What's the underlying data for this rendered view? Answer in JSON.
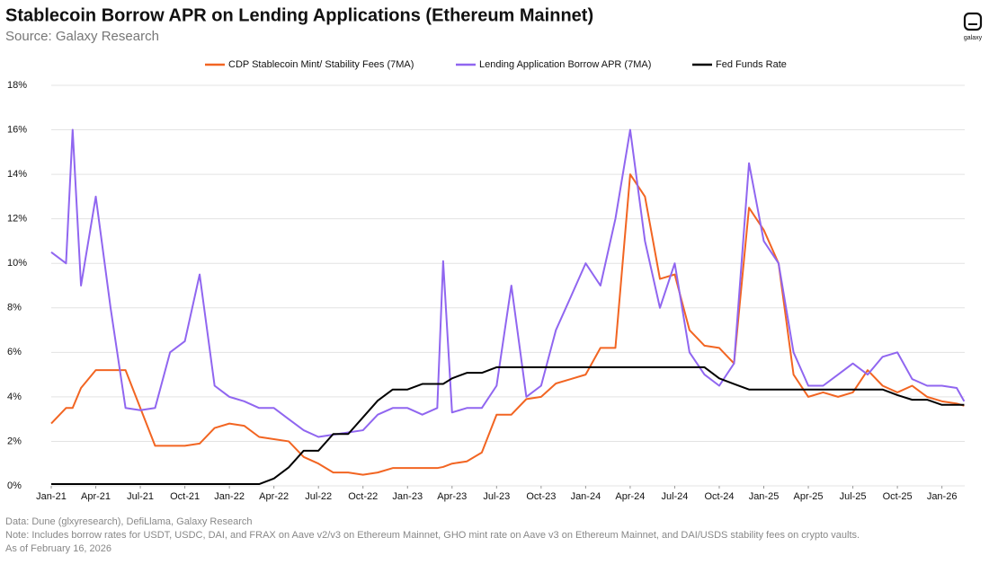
{
  "chart_data": {
    "type": "line",
    "title": "Stablecoin Borrow APR on Lending Applications (Ethereum Mainnet)",
    "subtitle": "Source: Galaxy Research",
    "logo_text": "galaxy",
    "notes": [
      "Data: Dune (glxyresearch), DefiLlama, Galaxy Research",
      "Note: Includes borrow rates for USDT, USDC, DAI, and FRAX on Aave v2/v3 on Ethereum Mainnet, GHO mint rate on Aave v3 on Ethereum Mainnet, and DAI/USDS stability fees on crypto vaults.",
      "As of February 16, 2026"
    ],
    "grid": true,
    "legend": "top",
    "x": [
      2021,
      2021.083,
      2021.12,
      2021.167,
      2021.25,
      2021.333,
      2021.417,
      2021.5,
      2021.583,
      2021.667,
      2021.75,
      2021.833,
      2021.917,
      2022,
      2022.083,
      2022.167,
      2022.25,
      2022.333,
      2022.417,
      2022.5,
      2022.583,
      2022.667,
      2022.75,
      2022.833,
      2022.917,
      2023,
      2023.083,
      2023.167,
      2023.2,
      2023.25,
      2023.333,
      2023.417,
      2023.5,
      2023.583,
      2023.667,
      2023.75,
      2023.833,
      2023.917,
      2024,
      2024.083,
      2024.167,
      2024.25,
      2024.333,
      2024.417,
      2024.5,
      2024.583,
      2024.667,
      2024.75,
      2024.833,
      2024.917,
      2025,
      2025.083,
      2025.167,
      2025.25,
      2025.333,
      2025.417,
      2025.5,
      2025.583,
      2025.667,
      2025.75,
      2025.833,
      2025.917,
      2026,
      2026.083,
      2026.125
    ],
    "xlim": [
      2021,
      2026.128
    ],
    "xticks": [
      {
        "value": 2021,
        "label": "Jan-21"
      },
      {
        "value": 2021.25,
        "label": "Apr-21"
      },
      {
        "value": 2021.5,
        "label": "Jul-21"
      },
      {
        "value": 2021.75,
        "label": "Oct-21"
      },
      {
        "value": 2022,
        "label": "Jan-22"
      },
      {
        "value": 2022.25,
        "label": "Apr-22"
      },
      {
        "value": 2022.5,
        "label": "Jul-22"
      },
      {
        "value": 2022.75,
        "label": "Oct-22"
      },
      {
        "value": 2023,
        "label": "Jan-23"
      },
      {
        "value": 2023.25,
        "label": "Apr-23"
      },
      {
        "value": 2023.5,
        "label": "Jul-23"
      },
      {
        "value": 2023.75,
        "label": "Oct-23"
      },
      {
        "value": 2024,
        "label": "Jan-24"
      },
      {
        "value": 2024.25,
        "label": "Apr-24"
      },
      {
        "value": 2024.5,
        "label": "Jul-24"
      },
      {
        "value": 2024.75,
        "label": "Oct-24"
      },
      {
        "value": 2025,
        "label": "Jan-25"
      },
      {
        "value": 2025.25,
        "label": "Apr-25"
      },
      {
        "value": 2025.5,
        "label": "Jul-25"
      },
      {
        "value": 2025.75,
        "label": "Oct-25"
      },
      {
        "value": 2026,
        "label": "Jan-26"
      }
    ],
    "ylim": [
      0,
      18
    ],
    "yticks": [
      {
        "value": 0,
        "label": "0%"
      },
      {
        "value": 2,
        "label": "2%"
      },
      {
        "value": 4,
        "label": "4%"
      },
      {
        "value": 6,
        "label": "6%"
      },
      {
        "value": 8,
        "label": "8%"
      },
      {
        "value": 10,
        "label": "10%"
      },
      {
        "value": 12,
        "label": "12%"
      },
      {
        "value": 14,
        "label": "14%"
      },
      {
        "value": 16,
        "label": "16%"
      },
      {
        "value": 18,
        "label": "18%"
      }
    ],
    "series": [
      {
        "name": "CDP Stablecoin Mint/ Stability Fees (7MA)",
        "color": "#f26522",
        "values": [
          2.8,
          3.5,
          3.5,
          4.4,
          5.2,
          5.2,
          5.2,
          3.5,
          1.8,
          1.8,
          1.8,
          1.9,
          2.6,
          2.8,
          2.7,
          2.2,
          2.1,
          2.0,
          1.3,
          1.0,
          0.6,
          0.6,
          0.5,
          0.6,
          0.8,
          0.8,
          0.8,
          0.8,
          0.85,
          1.0,
          1.1,
          1.5,
          3.2,
          3.2,
          3.9,
          4.0,
          4.6,
          4.8,
          5.0,
          6.2,
          6.2,
          14,
          13,
          9.3,
          9.5,
          7,
          6.3,
          6.2,
          5.5,
          12.5,
          11.5,
          10,
          5,
          4.0,
          4.2,
          4.0,
          4.2,
          5.2,
          4.5,
          4.2,
          4.5,
          4.0,
          3.8,
          3.7,
          3.6
        ]
      },
      {
        "name": "Lending Application Borrow APR (7MA)",
        "color": "#9066f0",
        "values": [
          10.5,
          10,
          16,
          9,
          13,
          8,
          3.5,
          3.4,
          3.5,
          6,
          6.5,
          9.5,
          4.5,
          4,
          3.8,
          3.5,
          3.5,
          3.0,
          2.5,
          2.2,
          2.3,
          2.4,
          2.5,
          3.2,
          3.5,
          3.5,
          3.2,
          3.5,
          10.1,
          3.3,
          3.5,
          3.5,
          4.5,
          9,
          4,
          4.5,
          7,
          8.5,
          10,
          9,
          12,
          16,
          11,
          8,
          10,
          6,
          5,
          4.5,
          5.5,
          14.5,
          11,
          10,
          6,
          4.5,
          4.5,
          5,
          5.5,
          5,
          5.8,
          6,
          4.8,
          4.5,
          4.5,
          4.4,
          3.8
        ]
      },
      {
        "name": "Fed Funds Rate",
        "color": "#000000",
        "values": [
          0.08,
          0.08,
          0.08,
          0.08,
          0.08,
          0.08,
          0.08,
          0.08,
          0.08,
          0.08,
          0.08,
          0.08,
          0.08,
          0.08,
          0.08,
          0.08,
          0.33,
          0.83,
          1.58,
          1.58,
          2.33,
          2.33,
          3.08,
          3.83,
          4.33,
          4.33,
          4.58,
          4.58,
          4.58,
          4.83,
          5.08,
          5.08,
          5.33,
          5.33,
          5.33,
          5.33,
          5.33,
          5.33,
          5.33,
          5.33,
          5.33,
          5.33,
          5.33,
          5.33,
          5.33,
          5.33,
          5.33,
          4.83,
          4.58,
          4.33,
          4.33,
          4.33,
          4.33,
          4.33,
          4.33,
          4.33,
          4.33,
          4.33,
          4.33,
          4.08,
          3.87,
          3.87,
          3.64,
          3.64,
          3.64
        ]
      }
    ]
  }
}
